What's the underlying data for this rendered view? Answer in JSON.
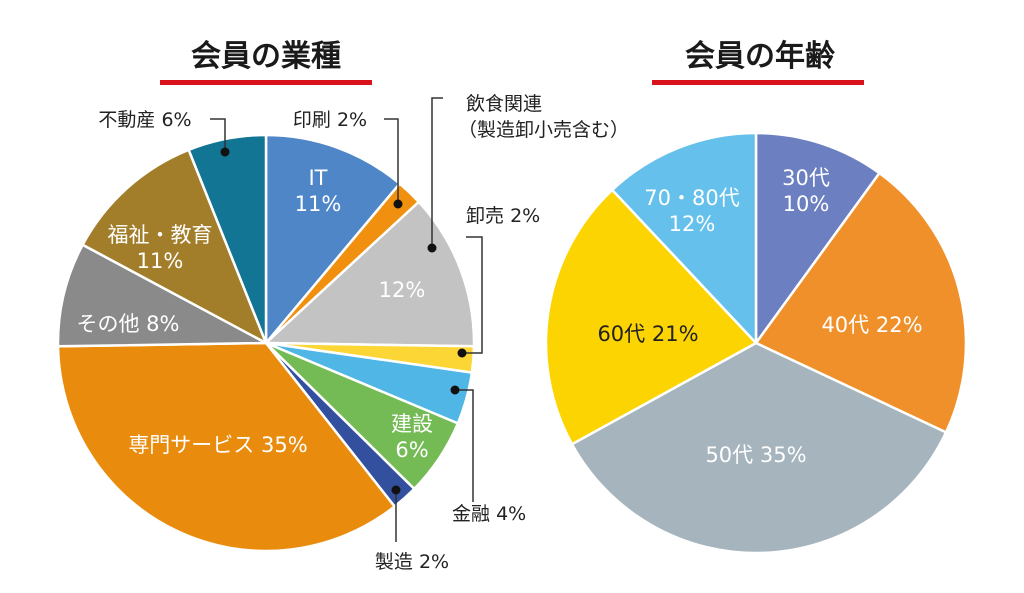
{
  "chart_data": [
    {
      "type": "pie",
      "title": "会員の業種",
      "slices": [
        {
          "label": "IT",
          "value": 11,
          "value_text": "11%",
          "color": "#4e86c7"
        },
        {
          "label": "印刷",
          "value": 2,
          "value_text": "2%",
          "color": "#f0900e"
        },
        {
          "label": "飲食関連\n（製造卸小売含む）",
          "value": 12,
          "value_text": "12%",
          "color": "#c3c3c3"
        },
        {
          "label": "卸売",
          "value": 2,
          "value_text": "2%",
          "color": "#fcd635"
        },
        {
          "label": "金融",
          "value": 4,
          "value_text": "4%",
          "color": "#4fb6e6"
        },
        {
          "label": "建設",
          "value": 6,
          "value_text": "6%",
          "color": "#74bb55"
        },
        {
          "label": "製造",
          "value": 2,
          "value_text": "2%",
          "color": "#33509e"
        },
        {
          "label": "専門サービス",
          "value": 35,
          "value_text": "35%",
          "color": "#e98b0c"
        },
        {
          "label": "その他",
          "value": 8,
          "value_text": "8%",
          "color": "#8a8a8a"
        },
        {
          "label": "福祉・教育",
          "value": 11,
          "value_text": "11%",
          "color": "#a27e2a"
        },
        {
          "label": "不動産",
          "value": 6,
          "value_text": "6%",
          "color": "#117593"
        }
      ]
    },
    {
      "type": "pie",
      "title": "会員の年齢",
      "slices": [
        {
          "label": "30代",
          "value": 10,
          "value_text": "10%",
          "color": "#6b7fc1"
        },
        {
          "label": "40代",
          "value": 22,
          "value_text": "22%",
          "color": "#f0902b"
        },
        {
          "label": "50代",
          "value": 35,
          "value_text": "35%",
          "color": "#a5b4bd"
        },
        {
          "label": "60代",
          "value": 21,
          "value_text": "21%",
          "color": "#fcd402"
        },
        {
          "label": "70・80代",
          "value": 12,
          "value_text": "12%",
          "color": "#65c1ec"
        }
      ]
    }
  ],
  "colors": {
    "title_underline": "#d9121b",
    "slice_border": "#ffffff"
  }
}
